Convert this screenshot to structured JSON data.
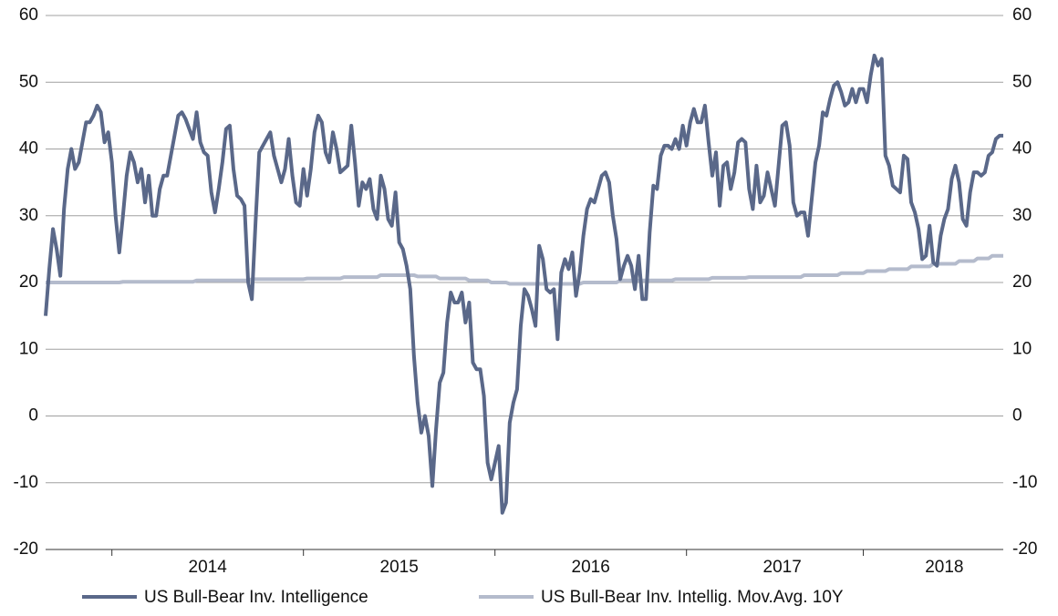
{
  "chart_data": {
    "type": "line",
    "categories": [
      null,
      null,
      null,
      null,
      null,
      null,
      null,
      null,
      null,
      null,
      null,
      null,
      null,
      null,
      null,
      null,
      null,
      null,
      null,
      null,
      null,
      null,
      null,
      null,
      null,
      null,
      null,
      null,
      null,
      null,
      null,
      null,
      null,
      null,
      null,
      null,
      null,
      null,
      null,
      null,
      null,
      null,
      null,
      null,
      "2014",
      null,
      null,
      null,
      null,
      null,
      null,
      null,
      null,
      null,
      null,
      null,
      null,
      null,
      null,
      null,
      null,
      null,
      null,
      null,
      null,
      null,
      null,
      null,
      null,
      null,
      null,
      null,
      null,
      null,
      null,
      null,
      null,
      null,
      null,
      null,
      null,
      null,
      null,
      null,
      null,
      null,
      null,
      null,
      null,
      null,
      null,
      null,
      null,
      null,
      null,
      null,
      "2015",
      null,
      null,
      null,
      null,
      null,
      null,
      null,
      null,
      null,
      null,
      null,
      null,
      null,
      null,
      null,
      null,
      null,
      null,
      null,
      null,
      null,
      null,
      null,
      null,
      null,
      null,
      null,
      null,
      null,
      null,
      null,
      null,
      null,
      null,
      null,
      null,
      null,
      null,
      null,
      null,
      null,
      null,
      null,
      null,
      null,
      null,
      null,
      null,
      null,
      null,
      null,
      "2016",
      null,
      null,
      null,
      null,
      null,
      null,
      null,
      null,
      null,
      null,
      null,
      null,
      null,
      null,
      null,
      null,
      null,
      null,
      null,
      null,
      null,
      null,
      null,
      null,
      null,
      null,
      null,
      null,
      null,
      null,
      null,
      null,
      null,
      null,
      null,
      null,
      null,
      null,
      null,
      null,
      null,
      null,
      null,
      null,
      null,
      null,
      null,
      null,
      null,
      null,
      null,
      "2017",
      null,
      null,
      null,
      null,
      null,
      null,
      null,
      null,
      null,
      null,
      null,
      null,
      null,
      null,
      null,
      null,
      null,
      null,
      null,
      null,
      null,
      null,
      null,
      null,
      null,
      null,
      null,
      null,
      null,
      null,
      null,
      null,
      null,
      null,
      null,
      null,
      null,
      null,
      null,
      null,
      null,
      null,
      null,
      "2018",
      null,
      null,
      null,
      null,
      null,
      null,
      null,
      null,
      null,
      null,
      null,
      null,
      null,
      null,
      null,
      null
    ],
    "series": [
      {
        "name": "US Bull-Bear Inv. Intelligence",
        "color": "#5a6889",
        "values": [
          15,
          22,
          28,
          25,
          21,
          31,
          37,
          40,
          37,
          38,
          41,
          44,
          44,
          45,
          46.5,
          45.5,
          41,
          42.5,
          38,
          30,
          24.5,
          30,
          36,
          39.5,
          38,
          35,
          37,
          32,
          36,
          30,
          30,
          34,
          36,
          36,
          39,
          42,
          45,
          45.5,
          44.5,
          43,
          41.5,
          45.5,
          41,
          39.5,
          39,
          33.5,
          30.5,
          34,
          38,
          43,
          43.5,
          37,
          33,
          32.5,
          31.5,
          20,
          17.5,
          29,
          39.5,
          40.5,
          41.5,
          42.5,
          39,
          37,
          35,
          37,
          41.5,
          36,
          32,
          31.5,
          37,
          33,
          37,
          42.5,
          45,
          44,
          39.5,
          38,
          42.5,
          40,
          36.5,
          37,
          37.5,
          43.5,
          38,
          31.5,
          35,
          34,
          35.5,
          31,
          29.5,
          36,
          34,
          29.5,
          28.5,
          33.5,
          26,
          25,
          22.5,
          19,
          9,
          2,
          -2.5,
          0,
          -3,
          -10.5,
          -2,
          5,
          6.5,
          14,
          18.5,
          17,
          17,
          18.5,
          14,
          17,
          8,
          7,
          7,
          3,
          -7,
          -9.5,
          -7,
          -4.5,
          -14.5,
          -13,
          -1,
          2,
          4,
          13.5,
          19,
          18,
          16,
          13.5,
          25.5,
          23.5,
          19,
          18.5,
          19,
          11.5,
          21.5,
          23.5,
          22,
          24.5,
          18,
          21.5,
          27,
          31,
          32.5,
          32,
          34,
          36,
          36.5,
          35,
          30,
          26.5,
          20.5,
          22.5,
          24,
          22.5,
          19,
          24,
          17.5,
          17.5,
          27.5,
          34.5,
          34,
          39,
          40.5,
          40.5,
          40,
          41.5,
          40,
          43.5,
          40.5,
          44,
          46,
          44,
          44,
          46.5,
          41,
          36,
          39.5,
          31.5,
          37.5,
          38,
          34,
          36.5,
          41,
          41.5,
          41,
          34,
          31,
          37.5,
          32,
          33,
          36.5,
          34,
          31.5,
          37.5,
          43.5,
          44,
          40.5,
          32,
          30,
          30.5,
          30.5,
          27,
          32.5,
          38,
          40.5,
          45.5,
          45,
          47.5,
          49.5,
          50,
          48.5,
          46.5,
          47,
          49,
          47,
          49,
          49,
          47,
          51,
          54,
          52.5,
          53.5,
          39,
          37.5,
          34.5,
          34,
          33.5,
          39,
          38.5,
          32,
          30.5,
          28,
          23.5,
          24,
          28.5,
          23,
          22.5,
          27,
          29.5,
          31,
          35.5,
          37.5,
          35,
          29.5,
          28.5,
          33.5,
          36.5,
          36.5,
          36,
          36.5,
          39,
          39.5,
          41.5,
          42,
          42
        ]
      },
      {
        "name": "US Bull-Bear Inv. Intellig. Mov.Avg. 10Y",
        "color": "#b4bbcc",
        "values": [
          20,
          20,
          20,
          20,
          20,
          20,
          20,
          20,
          20,
          20,
          20,
          20,
          20,
          20,
          20,
          20,
          20,
          20,
          20,
          20,
          20,
          20.1,
          20.1,
          20.1,
          20.1,
          20.1,
          20.1,
          20.1,
          20.1,
          20.1,
          20.1,
          20.1,
          20.1,
          20.1,
          20.1,
          20.1,
          20.1,
          20.1,
          20.1,
          20.1,
          20.1,
          20.3,
          20.3,
          20.3,
          20.3,
          20.3,
          20.3,
          20.3,
          20.3,
          20.3,
          20.3,
          20.3,
          20.3,
          20.3,
          20.3,
          20.3,
          20.5,
          20.5,
          20.5,
          20.5,
          20.5,
          20.5,
          20.5,
          20.5,
          20.5,
          20.5,
          20.5,
          20.5,
          20.5,
          20.5,
          20.5,
          20.6,
          20.6,
          20.6,
          20.6,
          20.6,
          20.6,
          20.6,
          20.6,
          20.6,
          20.6,
          20.8,
          20.8,
          20.8,
          20.8,
          20.8,
          20.8,
          20.8,
          20.8,
          20.8,
          20.8,
          21.1,
          21.1,
          21.1,
          21.1,
          21.1,
          21.1,
          21.1,
          21.1,
          21.1,
          21.1,
          20.9,
          20.9,
          20.9,
          20.9,
          20.9,
          20.9,
          20.6,
          20.6,
          20.6,
          20.6,
          20.6,
          20.6,
          20.6,
          20.6,
          20.3,
          20.3,
          20.3,
          20.3,
          20.3,
          20.3,
          20,
          20,
          20,
          20,
          20,
          19.8,
          19.8,
          19.8,
          19.8,
          19.8,
          19.8,
          19.8,
          19.8,
          19.8,
          19.8,
          19.8,
          19.8,
          19.8,
          19.8,
          19.8,
          19.8,
          19.8,
          19.8,
          19.8,
          19.8,
          20,
          20,
          20,
          20,
          20,
          20,
          20,
          20,
          20,
          20,
          20.3,
          20.3,
          20.3,
          20.3,
          20.3,
          20.3,
          20.3,
          20.3,
          20.3,
          20.3,
          20.3,
          20.3,
          20.3,
          20.3,
          20.3,
          20.5,
          20.5,
          20.5,
          20.5,
          20.5,
          20.5,
          20.5,
          20.5,
          20.5,
          20.5,
          20.7,
          20.7,
          20.7,
          20.7,
          20.7,
          20.7,
          20.7,
          20.7,
          20.7,
          20.7,
          20.8,
          20.8,
          20.8,
          20.8,
          20.8,
          20.8,
          20.8,
          20.8,
          20.8,
          20.8,
          20.8,
          20.8,
          20.8,
          20.8,
          20.8,
          21.1,
          21.1,
          21.1,
          21.1,
          21.1,
          21.1,
          21.1,
          21.1,
          21.1,
          21.1,
          21.4,
          21.4,
          21.4,
          21.4,
          21.4,
          21.4,
          21.4,
          21.7,
          21.7,
          21.7,
          21.7,
          21.7,
          21.7,
          22,
          22,
          22,
          22,
          22,
          22,
          22.4,
          22.4,
          22.4,
          22.4,
          22.4,
          22.4,
          22.8,
          22.8,
          22.8,
          22.8,
          22.8,
          22.8,
          22.8,
          23.2,
          23.2,
          23.2,
          23.2,
          23.2,
          23.6,
          23.6,
          23.6,
          23.6,
          24,
          24,
          24,
          24
        ]
      }
    ],
    "ylim": [
      -20,
      60
    ],
    "yticks": [
      -20,
      -10,
      0,
      10,
      20,
      30,
      40,
      50,
      60
    ],
    "grid": true,
    "legend": "bottom"
  }
}
